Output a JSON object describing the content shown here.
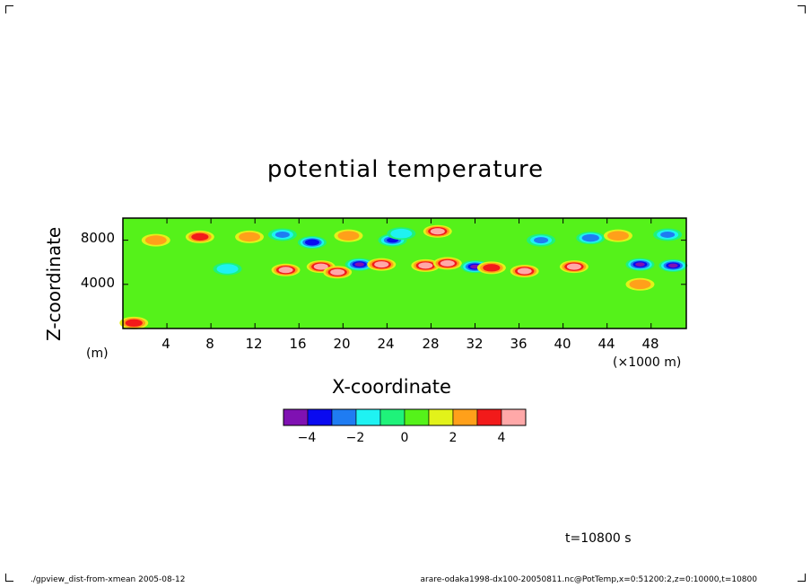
{
  "chart_data": {
    "type": "heatmap",
    "title": "potential temperature",
    "xlabel": "X-coordinate",
    "ylabel": "Z-coordinate",
    "x_unit": "(×1000 m)",
    "y_unit": "(m)",
    "xlim": [
      0,
      51.2
    ],
    "ylim": [
      0,
      10000
    ],
    "x_ticks": [
      "4",
      "8",
      "12",
      "16",
      "20",
      "24",
      "28",
      "32",
      "36",
      "40",
      "44",
      "48"
    ],
    "x_tick_values": [
      4,
      8,
      12,
      16,
      20,
      24,
      28,
      32,
      36,
      40,
      44,
      48
    ],
    "y_ticks": [
      "4000",
      "8000"
    ],
    "y_tick_values": [
      4000,
      8000
    ],
    "colorbar": {
      "levels": [
        -5,
        -4,
        -3,
        -2,
        -1,
        0,
        1,
        2,
        3,
        4,
        5
      ],
      "labels": [
        "−4",
        "−2",
        "0",
        "2",
        "4"
      ],
      "label_values": [
        -4,
        -2,
        0,
        2,
        4
      ],
      "colors": [
        "#7f11b2",
        "#0a0af0",
        "#1f7cf2",
        "#1ff2f2",
        "#1ff27a",
        "#55f21a",
        "#e2f21a",
        "#ffa01a",
        "#f21a1a",
        "#ffa8a8"
      ]
    },
    "background_value": 0,
    "features": [
      {
        "x": 7.0,
        "z": 8300,
        "value": 3.0
      },
      {
        "x": 3.0,
        "z": 8000,
        "value": 2.5
      },
      {
        "x": 11.5,
        "z": 8300,
        "value": 2.2
      },
      {
        "x": 14.8,
        "z": 5300,
        "value": 4.0
      },
      {
        "x": 14.5,
        "z": 8500,
        "value": -2.5
      },
      {
        "x": 17.2,
        "z": 7800,
        "value": -4.0
      },
      {
        "x": 18.0,
        "z": 5600,
        "value": 4.6
      },
      {
        "x": 19.5,
        "z": 5100,
        "value": 4.5
      },
      {
        "x": 20.5,
        "z": 8400,
        "value": 2.0
      },
      {
        "x": 21.5,
        "z": 5800,
        "value": -4.8
      },
      {
        "x": 23.5,
        "z": 5800,
        "value": 4.2
      },
      {
        "x": 24.5,
        "z": 8000,
        "value": -3.5
      },
      {
        "x": 25.3,
        "z": 8600,
        "value": -2.0
      },
      {
        "x": 28.6,
        "z": 8800,
        "value": 4.5
      },
      {
        "x": 27.5,
        "z": 5700,
        "value": 4.3
      },
      {
        "x": 29.5,
        "z": 5900,
        "value": 4.0
      },
      {
        "x": 32.0,
        "z": 5600,
        "value": -4.2
      },
      {
        "x": 33.5,
        "z": 5500,
        "value": 3.5
      },
      {
        "x": 36.5,
        "z": 5200,
        "value": 4.0
      },
      {
        "x": 38.0,
        "z": 8000,
        "value": -2.5
      },
      {
        "x": 41.0,
        "z": 5600,
        "value": 4.6
      },
      {
        "x": 42.5,
        "z": 8200,
        "value": -3.0
      },
      {
        "x": 45.0,
        "z": 8400,
        "value": 2.0
      },
      {
        "x": 47.0,
        "z": 5800,
        "value": -4.8
      },
      {
        "x": 50.0,
        "z": 5700,
        "value": -4.6
      },
      {
        "x": 49.5,
        "z": 8500,
        "value": -2.8
      },
      {
        "x": 9.5,
        "z": 5400,
        "value": -2.0
      },
      {
        "x": 1.0,
        "z": 500,
        "value": 3.0
      },
      {
        "x": 47.0,
        "z": 4000,
        "value": 2.0
      }
    ]
  },
  "time_label": "t=10800  s",
  "footer_left": "./gpview_dist-from-xmean  2005-08-12",
  "footer_right": "arare-odaka1998-dx100-20050811.nc@PotTemp,x=0:51200:2,z=0:10000,t=10800"
}
